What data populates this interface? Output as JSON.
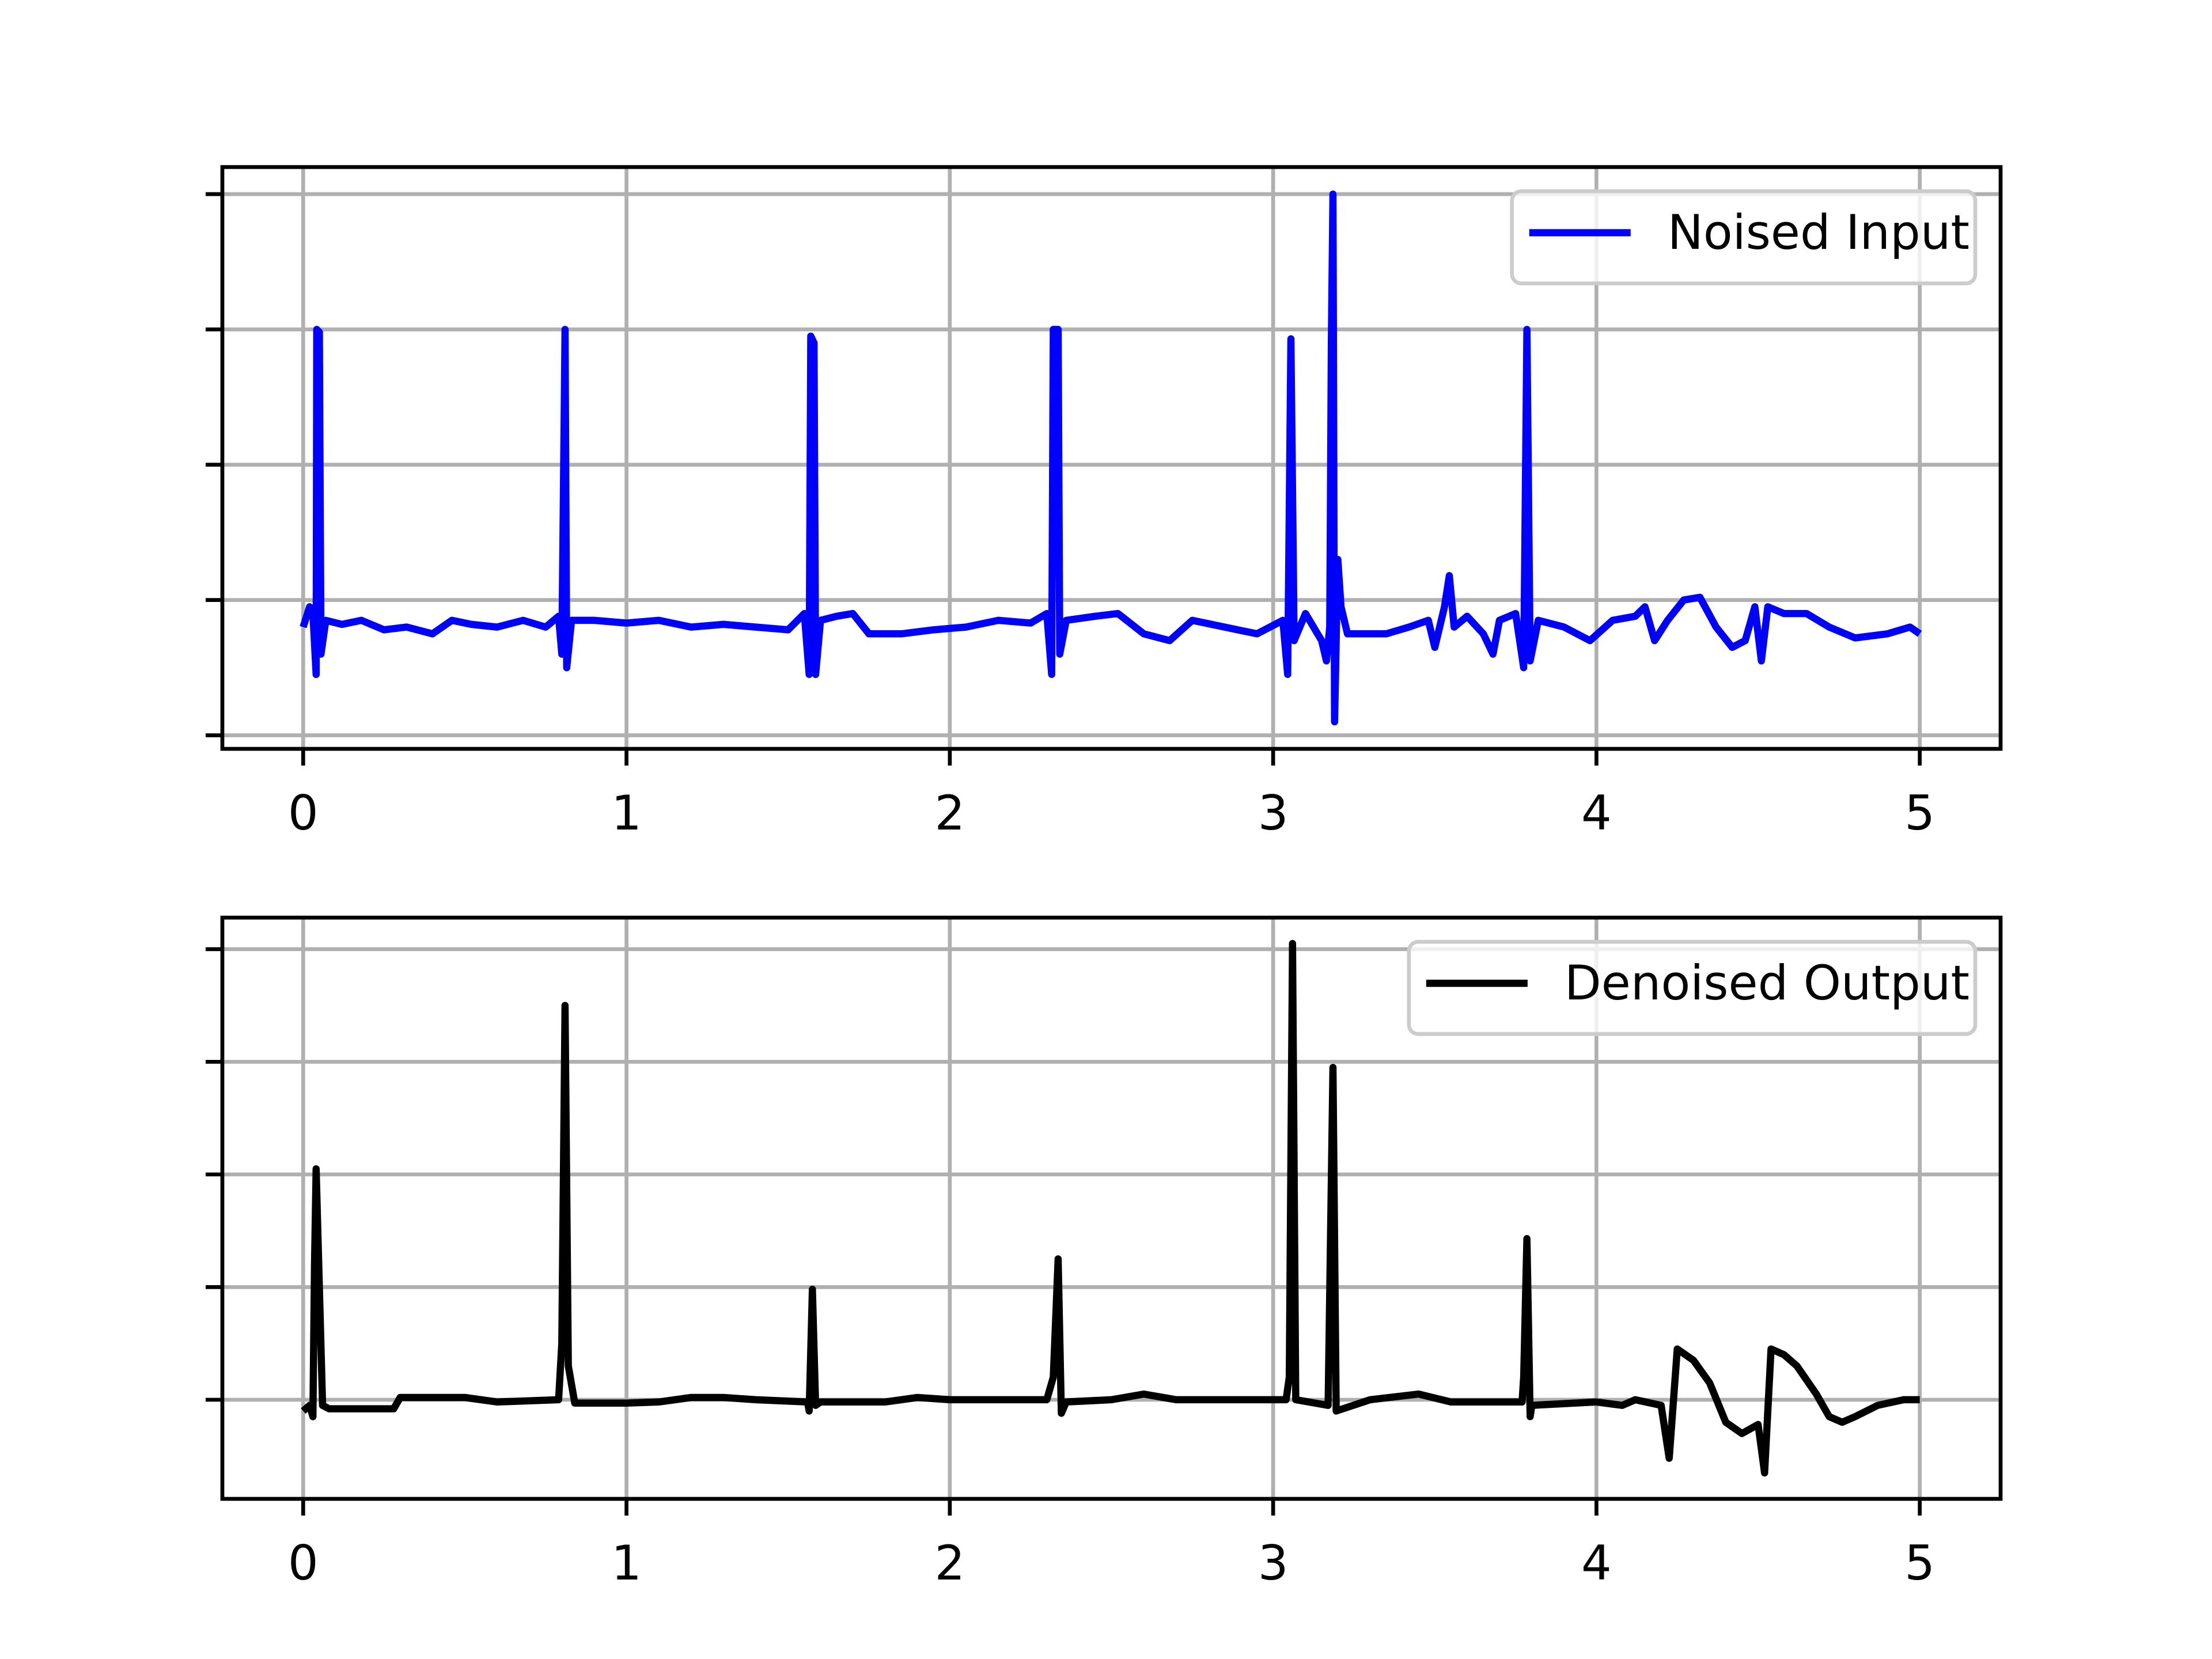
{
  "chart_data": [
    {
      "type": "line",
      "legend": "upper right",
      "grid": true,
      "xlim": [
        -0.25,
        5.25
      ],
      "xticks": [
        0,
        1,
        2,
        3,
        4,
        5
      ],
      "ylim": [
        -1.1,
        3.2
      ],
      "yticks": [
        -1,
        0,
        1,
        2,
        3
      ],
      "x": [
        0.0,
        0.02,
        0.03,
        0.04,
        0.042,
        0.05,
        0.055,
        0.07,
        0.12,
        0.18,
        0.25,
        0.32,
        0.4,
        0.46,
        0.52,
        0.6,
        0.68,
        0.75,
        0.79,
        0.8,
        0.81,
        0.815,
        0.83,
        0.9,
        1.0,
        1.1,
        1.2,
        1.3,
        1.4,
        1.5,
        1.55,
        1.565,
        1.57,
        1.58,
        1.585,
        1.6,
        1.65,
        1.7,
        1.75,
        1.85,
        1.95,
        2.05,
        2.15,
        2.25,
        2.3,
        2.315,
        2.32,
        2.335,
        2.34,
        2.36,
        2.45,
        2.52,
        2.6,
        2.68,
        2.75,
        2.85,
        2.95,
        3.03,
        3.045,
        3.055,
        3.065,
        3.1,
        3.15,
        3.165,
        3.175,
        3.18,
        3.185,
        3.19,
        3.2,
        3.21,
        3.23,
        3.28,
        3.35,
        3.42,
        3.48,
        3.5,
        3.53,
        3.545,
        3.56,
        3.6,
        3.65,
        3.68,
        3.7,
        3.75,
        3.775,
        3.785,
        3.795,
        3.82,
        3.9,
        3.98,
        4.05,
        4.12,
        4.15,
        4.18,
        4.22,
        4.27,
        4.32,
        4.37,
        4.42,
        4.46,
        4.49,
        4.51,
        4.53,
        4.58,
        4.65,
        4.72,
        4.8,
        4.9,
        4.97,
        5.0
      ],
      "series": [
        {
          "name": "Noised Input",
          "color": "#0000ff",
          "values": [
            -0.2,
            -0.05,
            -0.1,
            -0.55,
            2.0,
            1.98,
            -0.4,
            -0.15,
            -0.18,
            -0.15,
            -0.22,
            -0.2,
            -0.25,
            -0.15,
            -0.18,
            -0.2,
            -0.15,
            -0.2,
            -0.12,
            -0.4,
            2.0,
            -0.5,
            -0.15,
            -0.15,
            -0.17,
            -0.15,
            -0.2,
            -0.18,
            -0.2,
            -0.22,
            -0.1,
            -0.55,
            1.95,
            1.9,
            -0.55,
            -0.15,
            -0.12,
            -0.1,
            -0.25,
            -0.25,
            -0.22,
            -0.2,
            -0.15,
            -0.17,
            -0.1,
            -0.55,
            2.0,
            2.0,
            -0.4,
            -0.15,
            -0.12,
            -0.1,
            -0.25,
            -0.3,
            -0.15,
            -0.2,
            -0.25,
            -0.15,
            -0.55,
            1.93,
            -0.3,
            -0.1,
            -0.3,
            -0.45,
            -0.2,
            1.9,
            3.0,
            -0.9,
            0.3,
            -0.05,
            -0.25,
            -0.25,
            -0.25,
            -0.2,
            -0.15,
            -0.35,
            -0.05,
            0.18,
            -0.2,
            -0.12,
            -0.25,
            -0.4,
            -0.15,
            -0.1,
            -0.5,
            2.0,
            -0.45,
            -0.15,
            -0.2,
            -0.3,
            -0.15,
            -0.12,
            -0.05,
            -0.3,
            -0.15,
            0.0,
            0.02,
            -0.2,
            -0.35,
            -0.3,
            -0.05,
            -0.45,
            -0.05,
            -0.1,
            -0.1,
            -0.2,
            -0.28,
            -0.25,
            -0.2,
            -0.25
          ]
        }
      ]
    },
    {
      "type": "line",
      "legend": "upper right",
      "grid": true,
      "xlim": [
        -0.25,
        5.25
      ],
      "xticks": [
        0,
        1,
        2,
        3,
        4,
        5
      ],
      "ylim": [
        -0.88,
        4.28
      ],
      "yticks": [
        0,
        1,
        2,
        3,
        4
      ],
      "x": [
        0.0,
        0.02,
        0.03,
        0.035,
        0.04,
        0.05,
        0.06,
        0.08,
        0.28,
        0.3,
        0.5,
        0.6,
        0.79,
        0.8,
        0.81,
        0.82,
        0.84,
        1.0,
        1.1,
        1.2,
        1.3,
        1.4,
        1.56,
        1.565,
        1.575,
        1.585,
        1.6,
        1.8,
        1.9,
        2.0,
        2.3,
        2.32,
        2.335,
        2.345,
        2.36,
        2.5,
        2.6,
        2.7,
        3.04,
        3.05,
        3.06,
        3.07,
        3.17,
        3.185,
        3.195,
        3.3,
        3.45,
        3.55,
        3.77,
        3.775,
        3.785,
        3.795,
        3.8,
        4.0,
        4.08,
        4.12,
        4.2,
        4.225,
        4.25,
        4.3,
        4.35,
        4.4,
        4.45,
        4.5,
        4.52,
        4.54,
        4.58,
        4.62,
        4.68,
        4.72,
        4.76,
        4.8,
        4.87,
        4.95,
        5.0
      ],
      "series": [
        {
          "name": "Denoised Output",
          "color": "#000000",
          "values": [
            -0.1,
            -0.05,
            -0.15,
            1.2,
            2.05,
            1.0,
            -0.05,
            -0.08,
            -0.08,
            0.02,
            0.02,
            -0.02,
            0.0,
            0.5,
            3.5,
            0.3,
            -0.03,
            -0.03,
            -0.02,
            0.02,
            0.02,
            0.0,
            -0.02,
            -0.1,
            0.98,
            -0.05,
            -0.02,
            -0.02,
            0.02,
            0.0,
            0.0,
            0.2,
            1.25,
            -0.12,
            -0.02,
            0.0,
            0.05,
            0.0,
            0.0,
            0.2,
            4.05,
            0.0,
            -0.05,
            2.95,
            -0.1,
            0.0,
            0.05,
            -0.02,
            -0.02,
            0.2,
            1.43,
            -0.15,
            -0.05,
            -0.02,
            -0.05,
            0.0,
            -0.05,
            -0.52,
            0.45,
            0.35,
            0.15,
            -0.2,
            -0.3,
            -0.22,
            -0.65,
            0.45,
            0.4,
            0.3,
            0.05,
            -0.15,
            -0.2,
            -0.15,
            -0.05,
            0.0,
            0.0
          ]
        }
      ]
    }
  ]
}
